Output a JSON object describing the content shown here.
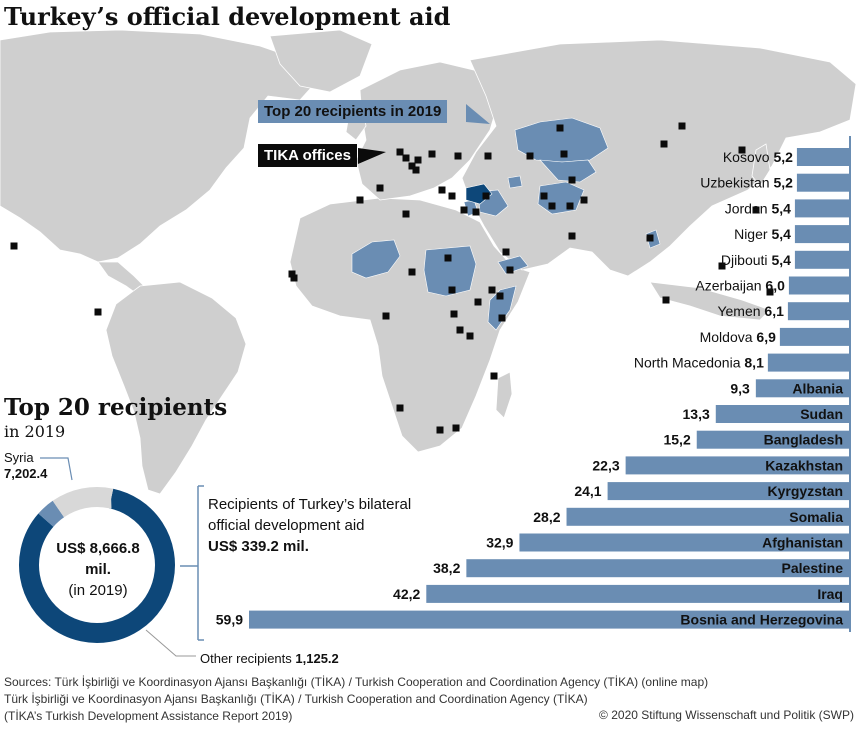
{
  "title": "Turkey’s official development aid",
  "map": {
    "callout_top20": "Top 20 recipients in 2019",
    "callout_tika": "TIKA offices"
  },
  "donut": {
    "heading": "Top 20 recipients",
    "subheading": "in 2019",
    "syria_label": "Syria",
    "syria_value": "7,202.4",
    "center_line1": "US$ 8,666.8",
    "center_line2": "mil.",
    "center_line3": "(in 2019)",
    "bilateral_line1": "Recipients of Turkey’s bilateral",
    "bilateral_line2": "official development aid",
    "bilateral_line3": "US$ 339.2 mil.",
    "other_label": "Other recipients",
    "other_value": "1,125.2"
  },
  "colors": {
    "map_land": "#cfcfcf",
    "highlight": "#6a8db3",
    "syria_dark": "#0d4779",
    "bar": "#6a8db3",
    "donut_syria": "#0d4779",
    "donut_other": "#d8d8d8",
    "donut_bilateral": "#6a8db3"
  },
  "chart_data": [
    {
      "type": "bar",
      "orientation": "horizontal",
      "categories": [
        "Kosovo",
        "Uzbekistan",
        "Jordan",
        "Niger",
        "Djibouti",
        "Azerbaijan",
        "Yemen",
        "Moldova",
        "North Macedonia",
        "Albania",
        "Sudan",
        "Bangladesh",
        "Kazakhstan",
        "Kyrgyzstan",
        "Somalia",
        "Afghanistan",
        "Palestine",
        "Iraq",
        "Bosnia and Herzegovina"
      ],
      "values": [
        5.2,
        5.2,
        5.4,
        5.4,
        5.4,
        6.0,
        6.1,
        6.9,
        8.1,
        9.3,
        13.3,
        15.2,
        22.3,
        24.1,
        28.2,
        32.9,
        38.2,
        42.2,
        59.9
      ],
      "value_labels": [
        "5,2",
        "5,2",
        "5,4",
        "5,4",
        "5,4",
        "6,0",
        "6,1",
        "6,9",
        "8,1",
        "9,3",
        "13,3",
        "15,2",
        "22,3",
        "24,1",
        "28,2",
        "32,9",
        "38,2",
        "42,2",
        "59,9"
      ]
    },
    {
      "type": "pie",
      "donut": true,
      "total": 8666.8,
      "slices": [
        {
          "label": "Syria",
          "value": 7202.4
        },
        {
          "label": "Recipients of Turkey’s bilateral official development aid",
          "value": 339.2
        },
        {
          "label": "Other recipients",
          "value": 1125.2
        }
      ]
    }
  ],
  "sources": [
    "Sources: Türk İşbirliği ve Koordinasyon Ajansı Başkanlığı (TİKA) / Turkish Cooperation and Coordination Agency (TİKA) (online map)",
    "Türk İşbirliği ve Koordinasyon Ajansı Başkanlığı (TİKA) / Turkish Cooperation and Coordination Agency (TİKA)",
    "(TİKA’s Turkish Development Assistance Report 2019)"
  ],
  "copyright": "© 2020 Stiftung Wissenschaft und Politik (SWP)"
}
